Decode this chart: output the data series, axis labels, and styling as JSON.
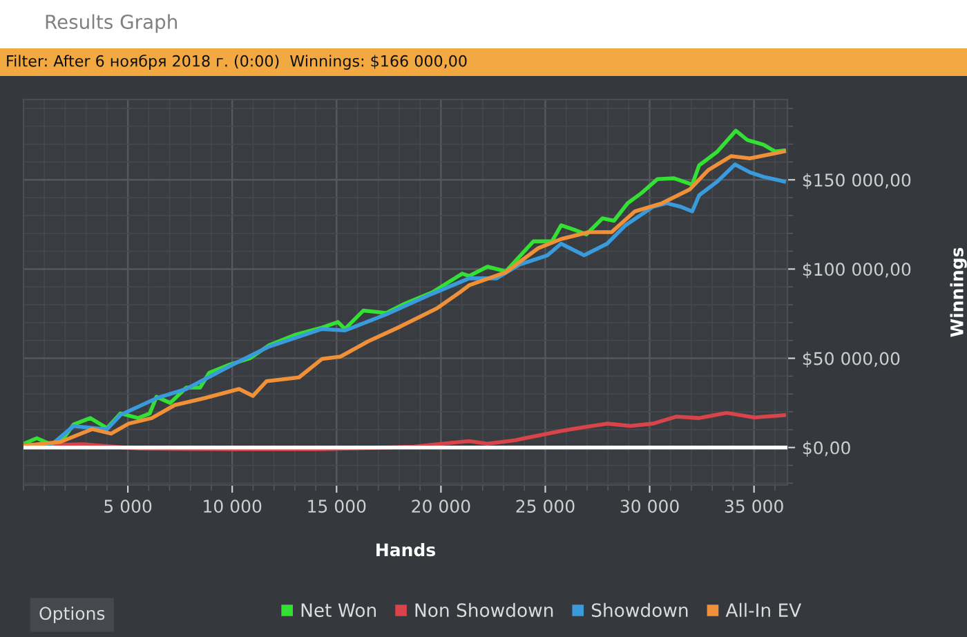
{
  "chart_data": {
    "type": "line",
    "title": "Results Graph",
    "subtitle": "Filter: After 6 ноября 2018 г. (0:00)  Winnings: $166 000,00",
    "xlabel": "Hands",
    "ylabel": "Winnings",
    "annotations": [
      "Options"
    ],
    "xlim": [
      0,
      36600
    ],
    "ylim": [
      -21000,
      195000
    ],
    "xticks": [
      {
        "value": 5000,
        "label": "5 000"
      },
      {
        "value": 10000,
        "label": "10 000"
      },
      {
        "value": 15000,
        "label": "15 000"
      },
      {
        "value": 20000,
        "label": "20 000"
      },
      {
        "value": 25000,
        "label": "25 000"
      },
      {
        "value": 30000,
        "label": "30 000"
      },
      {
        "value": 35000,
        "label": "35 000"
      }
    ],
    "yticks": [
      {
        "value": 0,
        "label": "$0,00"
      },
      {
        "value": 50000,
        "label": "$50 000,00"
      },
      {
        "value": 100000,
        "label": "$100 000,00"
      },
      {
        "value": 150000,
        "label": "$150 000,00"
      }
    ],
    "grid": true,
    "legend": "bottom",
    "marker": "none",
    "line_style": "solid",
    "ref_lines": [
      {
        "axis": "y",
        "value": 0,
        "label": null,
        "color": "#ffffff"
      }
    ],
    "series": [
      {
        "name": "Net Won",
        "color": "#33e033",
        "x": [
          0,
          640,
          1300,
          1900,
          2400,
          3200,
          4000,
          4650,
          5500,
          6050,
          6370,
          7030,
          7800,
          8460,
          8900,
          9890,
          10870,
          11770,
          12980,
          14300,
          15070,
          15400,
          16280,
          17380,
          18270,
          19590,
          21020,
          21350,
          22230,
          23110,
          24430,
          25320,
          25760,
          26420,
          26970,
          27740,
          28290,
          28950,
          29610,
          30380,
          31150,
          32040,
          32370,
          33250,
          34130,
          34680,
          35450,
          36000,
          36440
        ],
        "values": [
          2000,
          5200,
          1800,
          4900,
          12900,
          16500,
          10900,
          19100,
          16500,
          19100,
          28400,
          25000,
          33600,
          33600,
          41900,
          46500,
          50100,
          57400,
          63000,
          67200,
          70300,
          66400,
          76700,
          75400,
          80600,
          87000,
          97400,
          96100,
          101300,
          98700,
          115500,
          115500,
          124500,
          121900,
          119400,
          128400,
          127100,
          136900,
          142600,
          150400,
          150900,
          147300,
          158100,
          165900,
          177500,
          172300,
          169700,
          165900,
          166400
        ]
      },
      {
        "name": "Non Showdown",
        "color": "#d9434a",
        "x": [
          0,
          2840,
          5500,
          9890,
          14300,
          18700,
          20900,
          21350,
          22230,
          23550,
          24650,
          25760,
          26860,
          27960,
          29070,
          30160,
          31270,
          32370,
          33690,
          35020,
          36440
        ],
        "values": [
          1000,
          1800,
          -600,
          -1000,
          -1000,
          500,
          3100,
          3600,
          2100,
          4100,
          6700,
          9300,
          11400,
          13400,
          12100,
          13400,
          17300,
          16500,
          19400,
          16800,
          18100
        ]
      },
      {
        "name": "Showdown",
        "color": "#3a9bdc",
        "x": [
          0,
          1300,
          2400,
          4000,
          4650,
          6370,
          7800,
          9890,
          11770,
          14300,
          15400,
          17380,
          19590,
          21350,
          22670,
          23770,
          25100,
          25760,
          26860,
          27960,
          28840,
          30160,
          30820,
          31490,
          32040,
          32370,
          33250,
          34090,
          34800,
          35450,
          36440
        ],
        "values": [
          1500,
          1200,
          12000,
          10200,
          18300,
          27600,
          32800,
          45700,
          56600,
          66400,
          65600,
          74600,
          86200,
          94800,
          94800,
          102500,
          107700,
          114200,
          107700,
          114200,
          124500,
          134900,
          136900,
          134900,
          132300,
          141300,
          149100,
          158600,
          154200,
          151700,
          149100
        ]
      },
      {
        "name": "All-In EV",
        "color": "#f0913a",
        "x": [
          0,
          1760,
          3290,
          4200,
          5040,
          6150,
          7250,
          8680,
          10330,
          10990,
          11650,
          13200,
          14300,
          15180,
          16500,
          18040,
          19810,
          20910,
          21350,
          23110,
          24650,
          25760,
          27080,
          28180,
          29290,
          30600,
          31930,
          32810,
          33910,
          34800,
          35900,
          36440
        ],
        "values": [
          1000,
          3100,
          10300,
          7800,
          13400,
          16500,
          23800,
          27700,
          32800,
          28900,
          37200,
          39300,
          49600,
          50900,
          59400,
          67700,
          78000,
          87000,
          90900,
          98200,
          111600,
          116800,
          120700,
          120700,
          132300,
          136900,
          144700,
          155500,
          163300,
          162000,
          164600,
          165900
        ]
      }
    ]
  }
}
